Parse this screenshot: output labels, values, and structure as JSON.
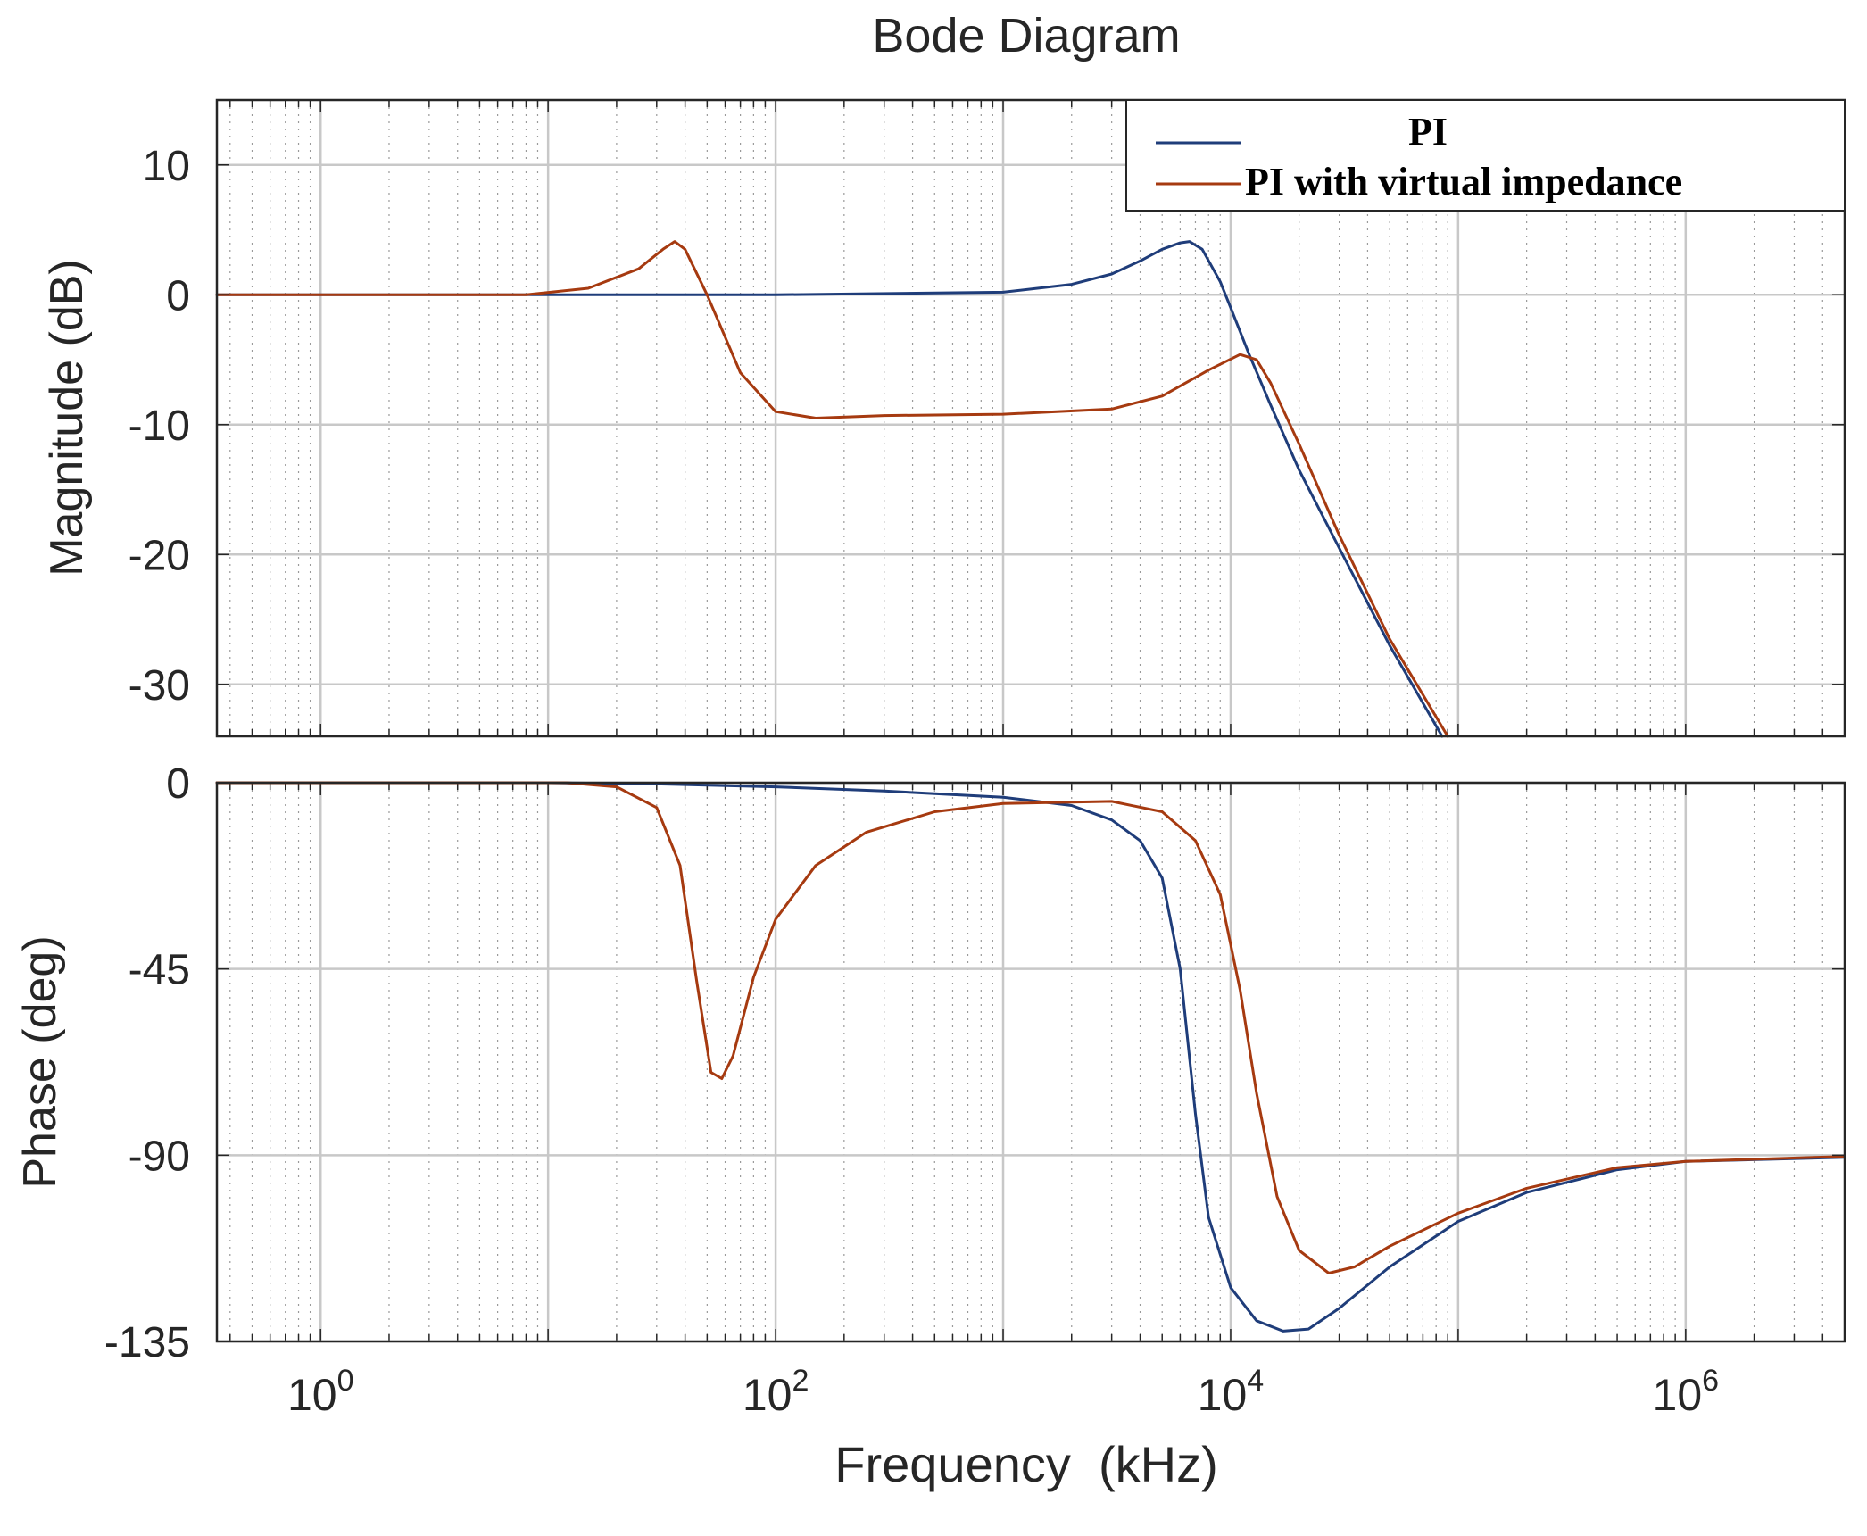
{
  "chart_data": {
    "type": "line",
    "title": "Bode Diagram",
    "xlabel": "Frequency  (kHz)",
    "xscale": "log",
    "xlim": [
      0.35,
      5000000
    ],
    "x_tick_labels": [
      {
        "base": "10",
        "exp": "0",
        "value": 1
      },
      {
        "base": "10",
        "exp": "2",
        "value": 100
      },
      {
        "base": "10",
        "exp": "4",
        "value": 10000
      },
      {
        "base": "10",
        "exp": "6",
        "value": 1000000
      }
    ],
    "grid": true,
    "legend": {
      "position": "top-right",
      "entries": [
        "PI",
        "PI with virtual impedance"
      ]
    },
    "subplots": [
      {
        "name": "magnitude",
        "ylabel": "Magnitude (dB)",
        "ylim": [
          -34,
          15
        ],
        "yticks": [
          10,
          0,
          -10,
          -20,
          -30
        ],
        "ytick_labels": [
          "10",
          "0",
          "-10",
          "-20",
          "-30"
        ],
        "series": [
          {
            "name": "PI",
            "color": "#1f3d7a",
            "points": [
              [
                0.35,
                0
              ],
              [
                10,
                0
              ],
              [
                100,
                0
              ],
              [
                1000,
                0.2
              ],
              [
                2000,
                0.8
              ],
              [
                3000,
                1.6
              ],
              [
                4000,
                2.6
              ],
              [
                5000,
                3.5
              ],
              [
                6000,
                4.0
              ],
              [
                6600,
                4.1
              ],
              [
                7500,
                3.5
              ],
              [
                9000,
                1
              ],
              [
                10000,
                -1
              ],
              [
                12000,
                -4.5
              ],
              [
                15000,
                -8.5
              ],
              [
                20000,
                -13.5
              ],
              [
                30000,
                -19.5
              ],
              [
                50000,
                -27
              ],
              [
                85000,
                -34
              ]
            ]
          },
          {
            "name": "PI with virtual impedance",
            "color": "#a63a10",
            "points": [
              [
                0.35,
                0
              ],
              [
                8,
                0
              ],
              [
                15,
                0.5
              ],
              [
                25,
                2
              ],
              [
                32,
                3.5
              ],
              [
                36,
                4.1
              ],
              [
                40,
                3.5
              ],
              [
                50,
                0
              ],
              [
                70,
                -6
              ],
              [
                100,
                -9
              ],
              [
                150,
                -9.5
              ],
              [
                300,
                -9.3
              ],
              [
                1000,
                -9.2
              ],
              [
                3000,
                -8.8
              ],
              [
                5000,
                -7.8
              ],
              [
                8000,
                -5.8
              ],
              [
                11000,
                -4.6
              ],
              [
                13000,
                -5
              ],
              [
                15000,
                -6.8
              ],
              [
                20000,
                -11.5
              ],
              [
                30000,
                -18.5
              ],
              [
                50000,
                -26.5
              ],
              [
                90000,
                -34
              ]
            ]
          }
        ]
      },
      {
        "name": "phase",
        "ylabel": "Phase (deg)",
        "ylim": [
          -135,
          0
        ],
        "yticks": [
          0,
          -45,
          -90,
          -135
        ],
        "ytick_labels": [
          "0",
          "-45",
          "-90",
          "-135"
        ],
        "series": [
          {
            "name": "PI",
            "color": "#1f3d7a",
            "points": [
              [
                0.35,
                0
              ],
              [
                10,
                0
              ],
              [
                30,
                -0.3
              ],
              [
                100,
                -1
              ],
              [
                300,
                -2
              ],
              [
                1000,
                -3.5
              ],
              [
                2000,
                -5.5
              ],
              [
                3000,
                -9
              ],
              [
                4000,
                -14
              ],
              [
                5000,
                -23
              ],
              [
                6000,
                -45
              ],
              [
                7000,
                -80
              ],
              [
                8000,
                -105
              ],
              [
                10000,
                -122
              ],
              [
                13000,
                -130
              ],
              [
                17000,
                -132.5
              ],
              [
                22000,
                -132
              ],
              [
                30000,
                -127
              ],
              [
                50000,
                -117
              ],
              [
                100000,
                -106
              ],
              [
                200000,
                -99
              ],
              [
                500000,
                -93.5
              ],
              [
                1000000,
                -91.5
              ],
              [
                5000000,
                -90.5
              ]
            ]
          },
          {
            "name": "PI with virtual impedance",
            "color": "#a63a10",
            "points": [
              [
                0.35,
                0
              ],
              [
                12,
                0
              ],
              [
                20,
                -1
              ],
              [
                30,
                -6
              ],
              [
                38,
                -20
              ],
              [
                45,
                -48
              ],
              [
                52,
                -70
              ],
              [
                58,
                -71.5
              ],
              [
                65,
                -66
              ],
              [
                80,
                -47
              ],
              [
                100,
                -33
              ],
              [
                150,
                -20
              ],
              [
                250,
                -12
              ],
              [
                500,
                -7
              ],
              [
                1000,
                -5
              ],
              [
                3000,
                -4.5
              ],
              [
                5000,
                -7
              ],
              [
                7000,
                -14
              ],
              [
                9000,
                -27
              ],
              [
                11000,
                -50
              ],
              [
                13000,
                -75
              ],
              [
                16000,
                -100
              ],
              [
                20000,
                -113
              ],
              [
                27000,
                -118.5
              ],
              [
                35000,
                -117
              ],
              [
                50000,
                -112
              ],
              [
                100000,
                -104
              ],
              [
                200000,
                -98
              ],
              [
                500000,
                -93
              ],
              [
                1000000,
                -91.5
              ],
              [
                5000000,
                -90.3
              ]
            ]
          }
        ]
      }
    ]
  }
}
